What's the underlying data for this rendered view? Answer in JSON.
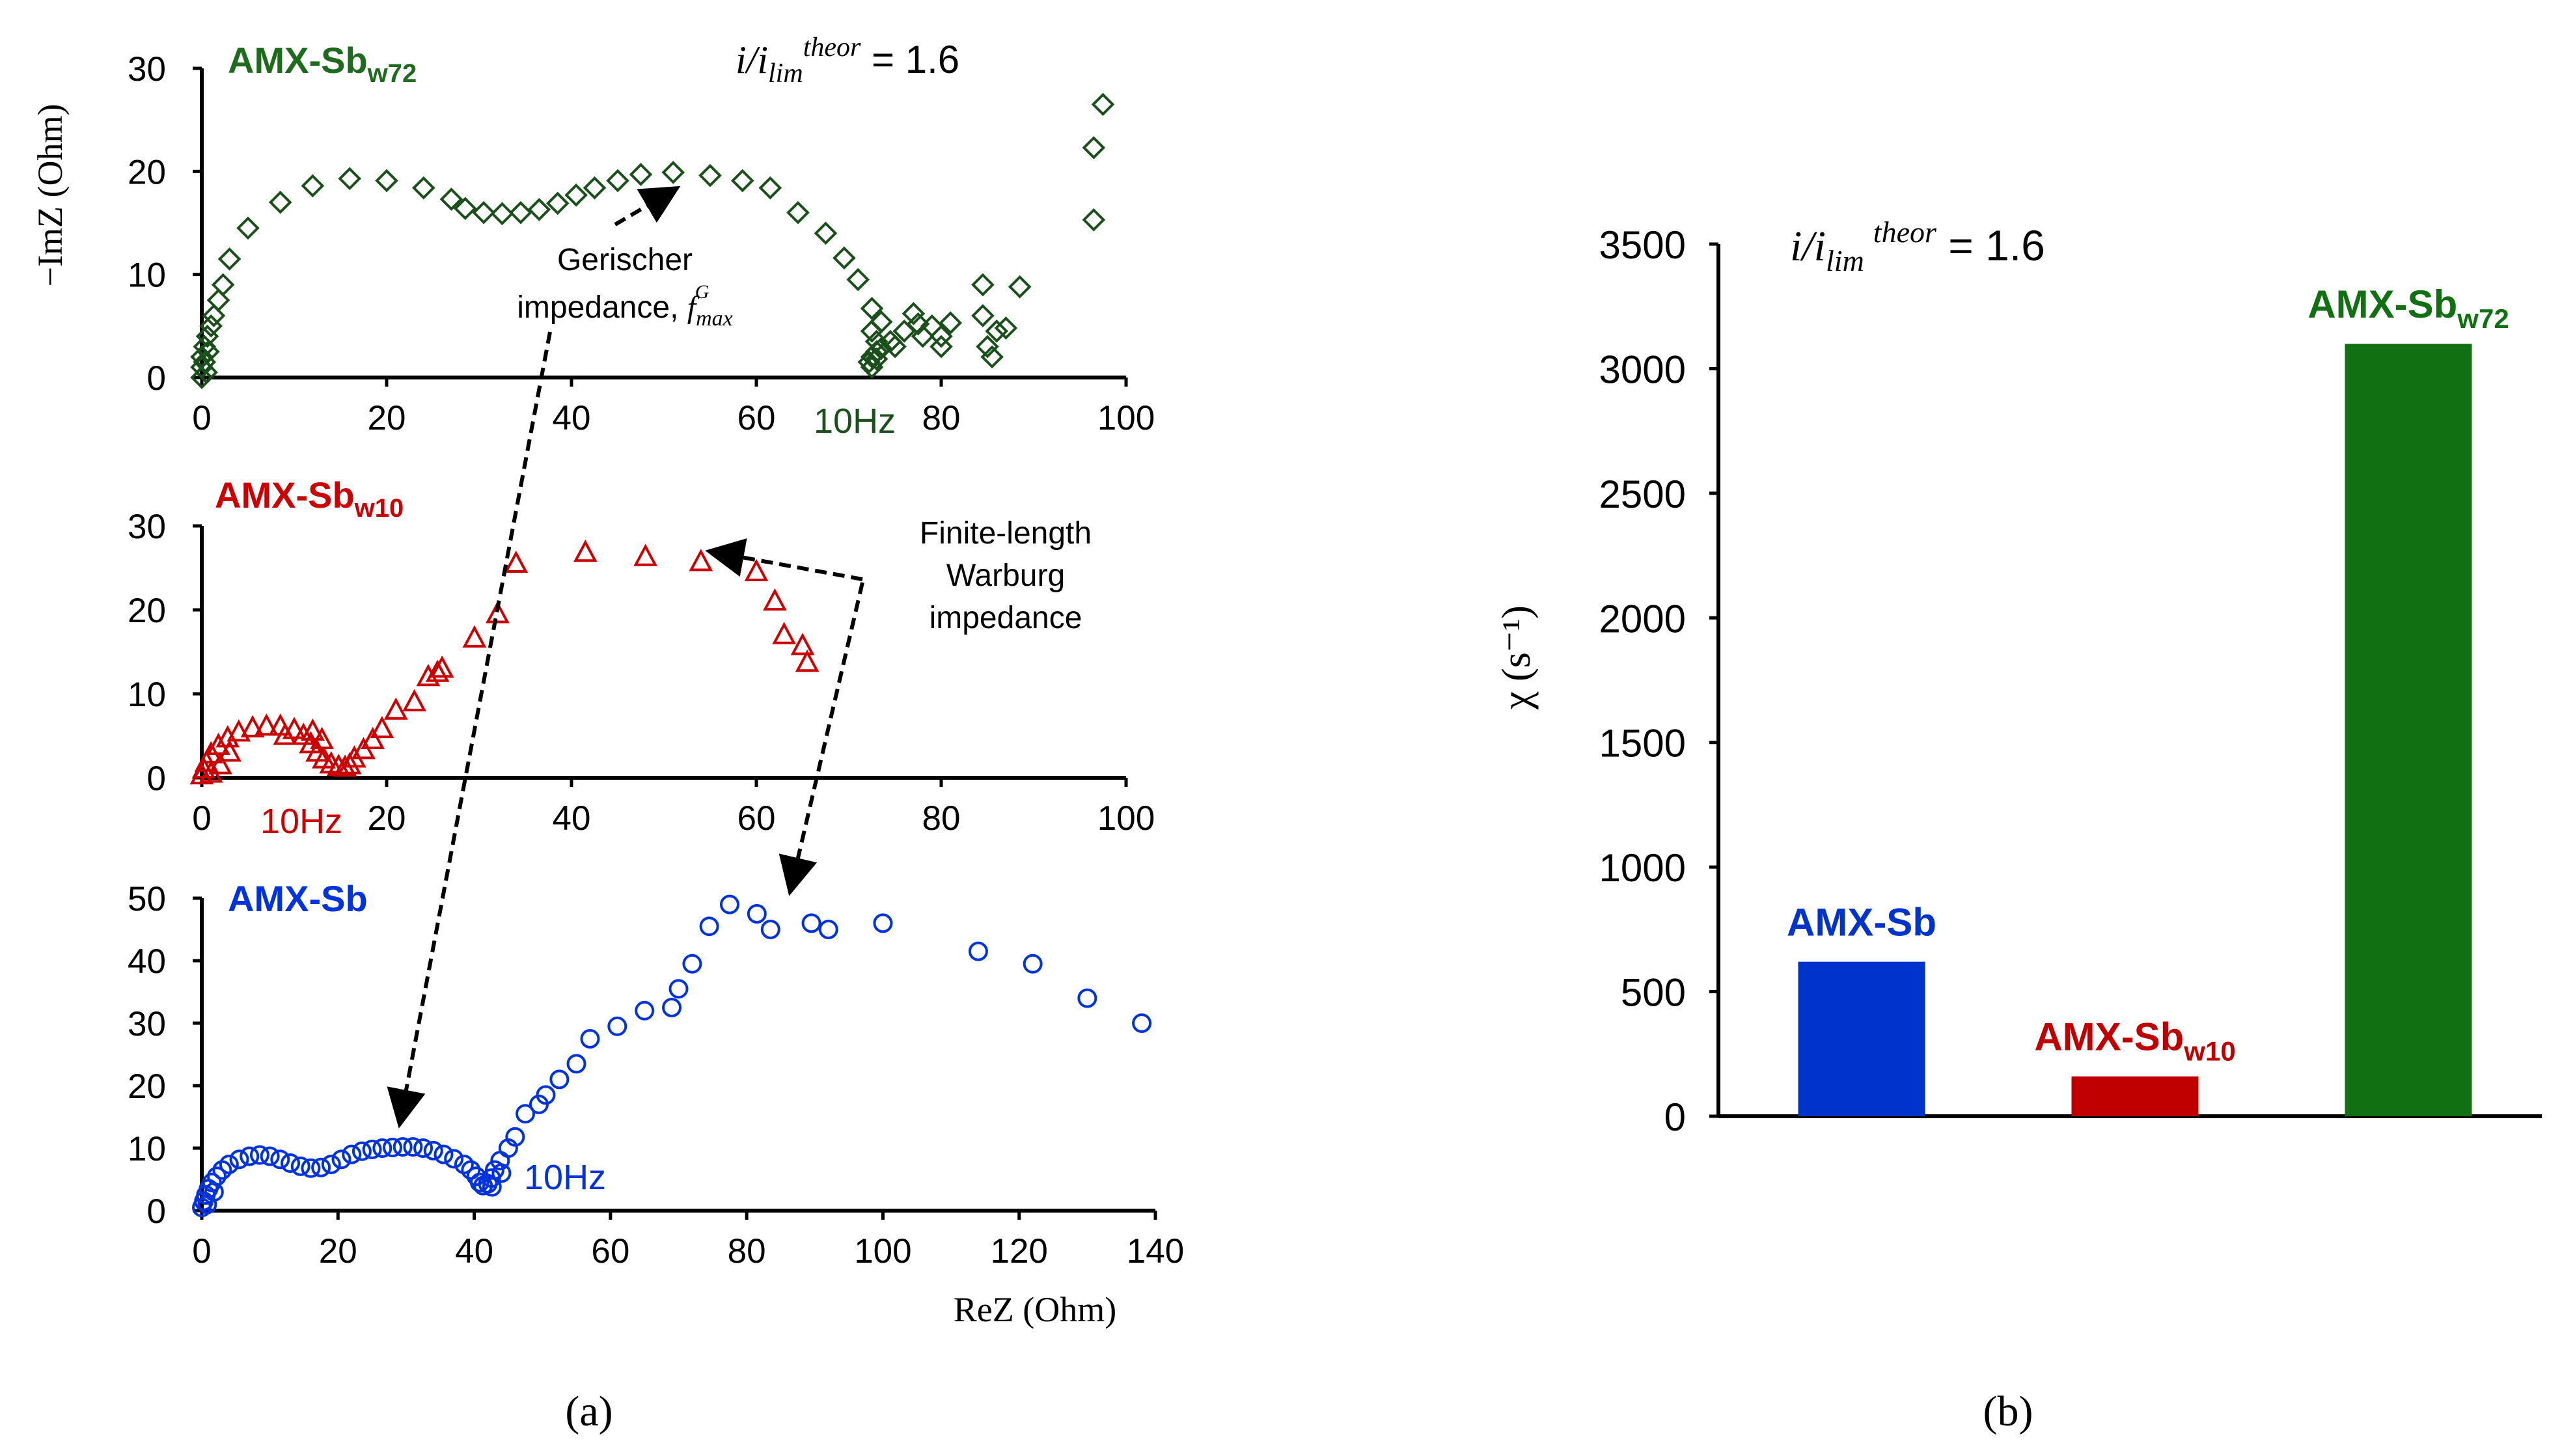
{
  "colors": {
    "blue": "#0033dd",
    "red": "#cc0000",
    "green": "#1e6b1e",
    "darkgreen": "#1b4f1b",
    "black": "#000000"
  },
  "labels": {
    "panel_a": "(a)",
    "panel_b": "(b)",
    "ratio_prefix_i": "i/i",
    "ratio_sub": "lim",
    "ratio_sup": "theor",
    "ratio_value": " = 1.6",
    "annot_gerischer_1": "Gerischer",
    "annot_gerischer_2": "impedance, ",
    "annot_gerischer_f": "f",
    "annot_gerischer_sub": "max",
    "annot_gerischer_sup": "G",
    "annot_warburg_1": "Finite-length",
    "annot_warburg_2": "Warburg",
    "annot_warburg_3": "impedance"
  },
  "chart_data": [
    {
      "id": "a-top",
      "type": "scatter",
      "series_name": "AMX-Sb",
      "series_sub": "w72",
      "marker": "diamond",
      "color": "#1b4f1b",
      "ylabel": "−ImZ (Ohm)",
      "xlim": [
        0,
        100
      ],
      "ylim": [
        0,
        30
      ],
      "xticks": [
        0,
        20,
        40,
        60,
        80,
        100
      ],
      "yticks": [
        0,
        10,
        20,
        30
      ],
      "annotation": "10Hz",
      "points": [
        [
          0,
          0
        ],
        [
          0,
          1
        ],
        [
          0,
          2
        ],
        [
          0.3,
          3
        ],
        [
          0.6,
          4
        ],
        [
          1,
          5
        ],
        [
          1.3,
          6
        ],
        [
          1.8,
          7.5
        ],
        [
          2.3,
          9
        ],
        [
          3,
          11.5
        ],
        [
          5,
          14.5
        ],
        [
          8.5,
          17
        ],
        [
          12,
          18.6
        ],
        [
          16,
          19.3
        ],
        [
          20,
          19.1
        ],
        [
          24,
          18.4
        ],
        [
          27,
          17.3
        ],
        [
          28.5,
          16.4
        ],
        [
          30.5,
          16
        ],
        [
          32.5,
          15.9
        ],
        [
          34.5,
          16
        ],
        [
          36.5,
          16.3
        ],
        [
          38.5,
          16.9
        ],
        [
          40.5,
          17.7
        ],
        [
          42.5,
          18.4
        ],
        [
          45,
          19.1
        ],
        [
          47.5,
          19.7
        ],
        [
          51,
          19.9
        ],
        [
          55,
          19.6
        ],
        [
          58.5,
          19.1
        ],
        [
          61.5,
          18.4
        ],
        [
          64.5,
          16
        ],
        [
          67.5,
          14
        ],
        [
          69.5,
          11.6
        ],
        [
          71,
          9.5
        ],
        [
          72.5,
          6.7
        ],
        [
          73.5,
          5.4
        ],
        [
          72.5,
          4.5
        ],
        [
          73,
          3.5
        ],
        [
          73,
          2.5
        ],
        [
          72.5,
          2
        ],
        [
          72.2,
          1.5
        ],
        [
          72.5,
          1
        ],
        [
          73,
          1.8
        ],
        [
          73.5,
          2.8
        ],
        [
          74.5,
          3.5
        ],
        [
          75,
          3
        ],
        [
          76,
          4.5
        ],
        [
          77,
          6.2
        ],
        [
          77.5,
          5.2
        ],
        [
          78,
          4
        ],
        [
          79,
          5
        ],
        [
          80,
          4
        ],
        [
          80,
          3
        ],
        [
          81,
          5.3
        ],
        [
          84.5,
          9
        ],
        [
          84.5,
          6
        ],
        [
          85,
          3
        ],
        [
          85.5,
          2
        ],
        [
          86,
          4.5
        ],
        [
          87,
          4.8
        ],
        [
          88.5,
          8.8
        ],
        [
          96.5,
          15.3
        ],
        [
          96.5,
          22.3
        ],
        [
          97.5,
          26.5
        ],
        [
          0.5,
          0.5
        ],
        [
          0.3,
          1.5
        ],
        [
          0.7,
          2.5
        ]
      ]
    },
    {
      "id": "a-mid",
      "type": "scatter",
      "series_name": "AMX-Sb",
      "series_sub": "w10",
      "marker": "triangle",
      "color": "#cc0000",
      "xlim": [
        0,
        100
      ],
      "ylim": [
        0,
        30
      ],
      "xticks": [
        0,
        20,
        40,
        60,
        80,
        100
      ],
      "yticks": [
        0,
        10,
        20,
        30
      ],
      "annotation": "10Hz",
      "points": [
        [
          0,
          0.3
        ],
        [
          0.2,
          1
        ],
        [
          0.5,
          1.8
        ],
        [
          1,
          2.8
        ],
        [
          1.8,
          3.8
        ],
        [
          2.8,
          4.7
        ],
        [
          4,
          5.4
        ],
        [
          5.5,
          5.9
        ],
        [
          7,
          6.1
        ],
        [
          8.5,
          6.1
        ],
        [
          10,
          5.7
        ],
        [
          11,
          5
        ],
        [
          11.8,
          4
        ],
        [
          12.5,
          3
        ],
        [
          13.2,
          2.2
        ],
        [
          14,
          1.6
        ],
        [
          14.8,
          1.3
        ],
        [
          15.5,
          1.2
        ],
        [
          16,
          1.5
        ],
        [
          16.5,
          2.3
        ],
        [
          17.5,
          3.3
        ],
        [
          18.5,
          4.5
        ],
        [
          19.5,
          5.8
        ],
        [
          21,
          8
        ],
        [
          23,
          9
        ],
        [
          24.5,
          12
        ],
        [
          25.5,
          12.5
        ],
        [
          26,
          13
        ],
        [
          29.5,
          16.6
        ],
        [
          32,
          19.5
        ],
        [
          34,
          25.5
        ],
        [
          41.5,
          26.8
        ],
        [
          48,
          26.3
        ],
        [
          54,
          25.7
        ],
        [
          60,
          24.5
        ],
        [
          62,
          21
        ],
        [
          63,
          17
        ],
        [
          65,
          15.7
        ],
        [
          65.5,
          13.7
        ],
        [
          1,
          0.5
        ],
        [
          2,
          1.5
        ],
        [
          3,
          3
        ],
        [
          9,
          5
        ],
        [
          12,
          5.5
        ],
        [
          13,
          4.5
        ]
      ]
    },
    {
      "id": "a-bot",
      "type": "scatter",
      "series_name": "AMX-Sb",
      "series_sub": "",
      "marker": "circle",
      "color": "#0033dd",
      "xlabel": "ReZ (Ohm)",
      "xlim": [
        0,
        140
      ],
      "ylim": [
        0,
        50
      ],
      "xticks": [
        0,
        20,
        40,
        60,
        80,
        100,
        120,
        140
      ],
      "yticks": [
        0,
        10,
        20,
        30,
        40,
        50
      ],
      "annotation": "10Hz",
      "points": [
        [
          0,
          0.5
        ],
        [
          0.3,
          1.5
        ],
        [
          0.6,
          2.5
        ],
        [
          1,
          3.5
        ],
        [
          1.5,
          4.5
        ],
        [
          2.2,
          5.5
        ],
        [
          3,
          6.5
        ],
        [
          4,
          7.4
        ],
        [
          5.5,
          8.2
        ],
        [
          7,
          8.7
        ],
        [
          8.5,
          8.9
        ],
        [
          10,
          8.7
        ],
        [
          11.5,
          8.2
        ],
        [
          13,
          7.6
        ],
        [
          14.5,
          7.1
        ],
        [
          16,
          6.8
        ],
        [
          17.5,
          6.9
        ],
        [
          19,
          7.4
        ],
        [
          20.5,
          8.2
        ],
        [
          22,
          9
        ],
        [
          23.5,
          9.5
        ],
        [
          25,
          9.8
        ],
        [
          26.5,
          10
        ],
        [
          28,
          10.1
        ],
        [
          29.5,
          10.2
        ],
        [
          31,
          10.2
        ],
        [
          32.5,
          10
        ],
        [
          34,
          9.6
        ],
        [
          35.5,
          9
        ],
        [
          37,
          8.3
        ],
        [
          38.5,
          7.4
        ],
        [
          39.5,
          6.5
        ],
        [
          40.3,
          5.5
        ],
        [
          40.8,
          4.5
        ],
        [
          41.3,
          4
        ],
        [
          42,
          4.3
        ],
        [
          42.5,
          5.2
        ],
        [
          43,
          6.5
        ],
        [
          43.8,
          8
        ],
        [
          45,
          10
        ],
        [
          46,
          11.8
        ],
        [
          47.5,
          15.5
        ],
        [
          49.5,
          17
        ],
        [
          50.5,
          18.5
        ],
        [
          52.5,
          21
        ],
        [
          55,
          23.5
        ],
        [
          57,
          27.5
        ],
        [
          61,
          29.5
        ],
        [
          65,
          32
        ],
        [
          69,
          32.5
        ],
        [
          70,
          35.5
        ],
        [
          72,
          39.5
        ],
        [
          74.5,
          45.5
        ],
        [
          77.5,
          49
        ],
        [
          81.5,
          47.5
        ],
        [
          83.5,
          45
        ],
        [
          89.5,
          46
        ],
        [
          92,
          45
        ],
        [
          100,
          46
        ],
        [
          114,
          41.5
        ],
        [
          122,
          39.5
        ],
        [
          130,
          34
        ],
        [
          138,
          30
        ],
        [
          0.8,
          1
        ],
        [
          1.8,
          3
        ],
        [
          42.6,
          3.8
        ],
        [
          44,
          6
        ]
      ]
    },
    {
      "id": "b",
      "type": "bar",
      "ylabel": "χ (s⁻¹)",
      "ylim": [
        0,
        3500
      ],
      "yticks": [
        0,
        500,
        1000,
        1500,
        2000,
        2500,
        3000,
        3500
      ],
      "categories": [
        "AMX-Sb",
        "AMX-Sbw10",
        "AMX-Sbw72"
      ],
      "values": [
        620,
        160,
        3100
      ],
      "bar_labels": [
        {
          "name": "AMX-Sb",
          "sub": ""
        },
        {
          "name": "AMX-Sb",
          "sub": "w10"
        },
        {
          "name": "AMX-Sb",
          "sub": "w72"
        }
      ],
      "colors": [
        "#0033cc",
        "#c00000",
        "#117011"
      ]
    }
  ]
}
